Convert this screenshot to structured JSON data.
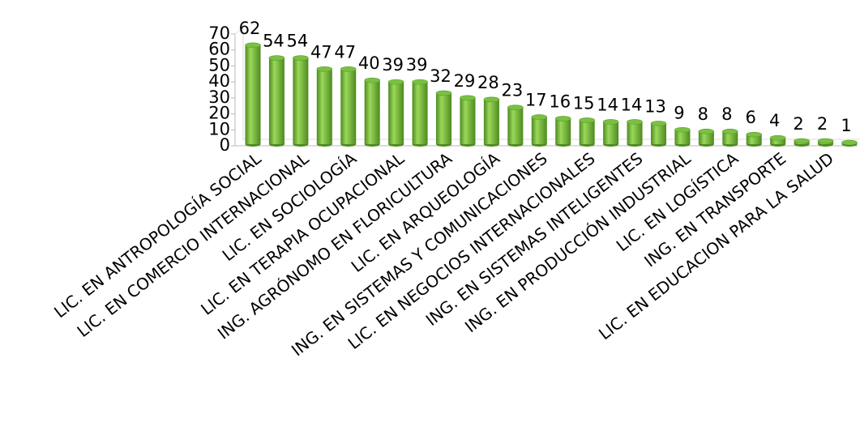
{
  "chart_data": {
    "type": "bar",
    "categories": [
      "LIC. EN ANTROPOLOGÍA SOCIAL",
      null,
      "LIC. EN COMERCIO INTERNACIONAL",
      null,
      "LIC. EN SOCIOLOGÍA",
      null,
      "LIC. EN TERAPIA OCUPACIONAL",
      null,
      "ING. AGRÓNOMO EN FLORICULTURA",
      null,
      "LIC. EN ARQUEOLOGÍA",
      null,
      "ING. EN SISTEMAS Y COMUNICACIONES",
      null,
      "LIC. EN NEGOCIOS INTERNACIONALES",
      null,
      "ING. EN SISTEMAS INTELIGENTES",
      null,
      "ING. EN PRODUCCIÓN INDUSTRIAL",
      null,
      "LIC. EN LOGÍSTICA",
      null,
      "ING. EN TRANSPORTE",
      null,
      "LIC. EN EDUCACION PARA LA SALUD",
      null
    ],
    "values": [
      62,
      54,
      54,
      47,
      47,
      40,
      39,
      39,
      32,
      29,
      28,
      23,
      17,
      16,
      15,
      14,
      14,
      13,
      9,
      8,
      8,
      6,
      4,
      2,
      2,
      1
    ],
    "color": "#7ac143",
    "ylim": [
      0,
      70
    ],
    "yticks": [
      0,
      10,
      20,
      30,
      40,
      50,
      60,
      70
    ]
  }
}
